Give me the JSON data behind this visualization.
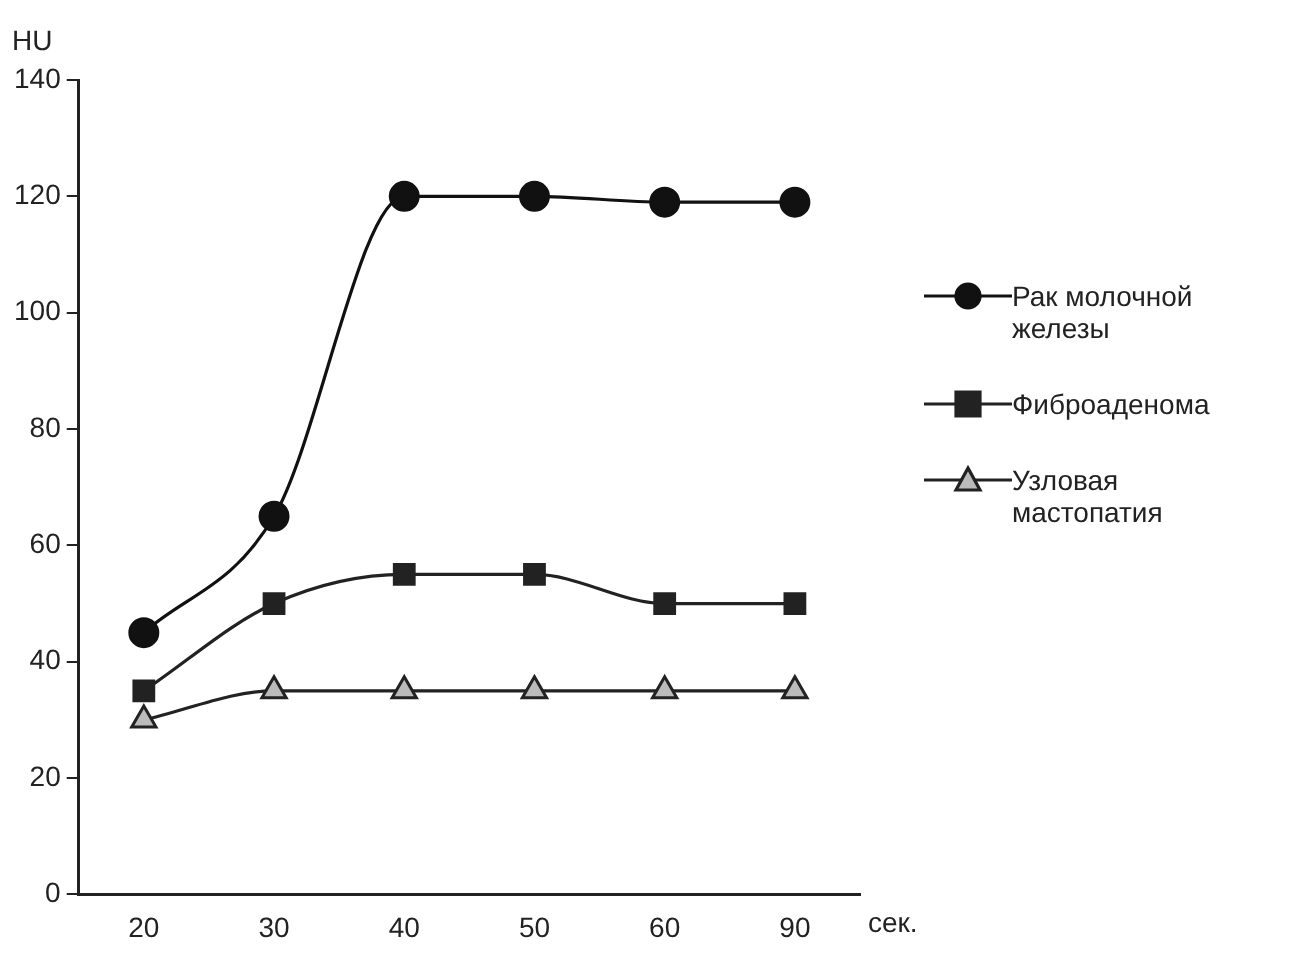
{
  "chart_data": {
    "type": "line",
    "ylabel": "HU",
    "xlabel": "сек.",
    "categories": [
      "20",
      "30",
      "40",
      "50",
      "60",
      "90"
    ],
    "series": [
      {
        "name": "Рак молочной железы",
        "color": "#111111",
        "marker": "circle",
        "values": [
          45,
          65,
          120,
          120,
          119,
          119
        ]
      },
      {
        "name": "Фиброаденома",
        "color": "#222222",
        "marker": "square",
        "values": [
          35,
          50,
          55,
          55,
          50,
          50
        ]
      },
      {
        "name": "Узловая мастопатия",
        "color": "#222222",
        "marker": "triangle",
        "values": [
          30,
          35,
          35,
          35,
          35,
          35
        ]
      }
    ],
    "ylim": [
      0,
      140
    ],
    "yticks": [
      0,
      20,
      40,
      60,
      80,
      100,
      120,
      140
    ],
    "grid": false,
    "legend": "right",
    "line_style": "solid"
  }
}
